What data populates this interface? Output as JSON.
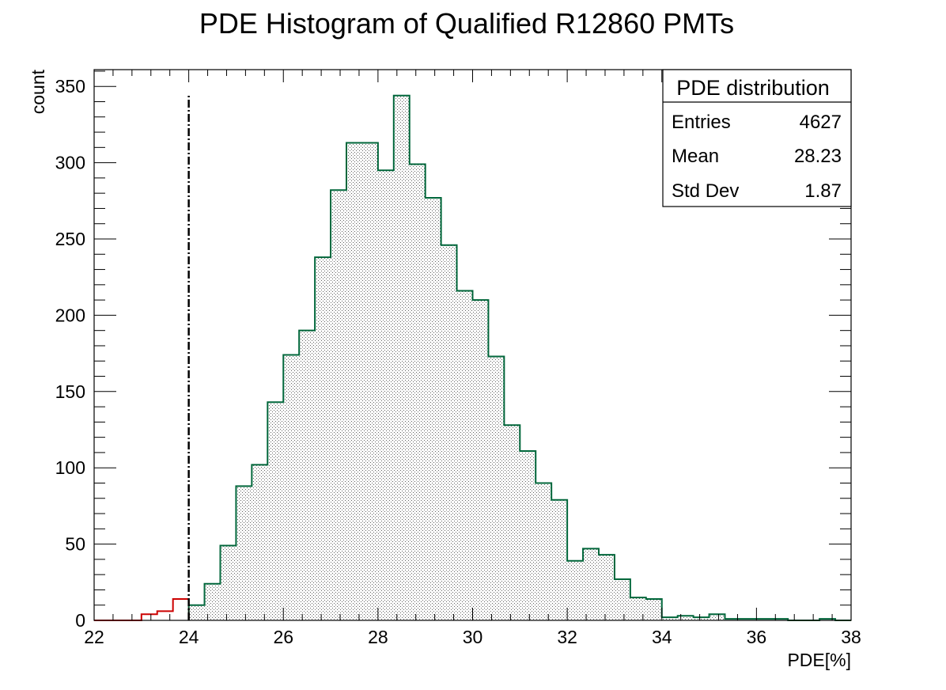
{
  "chart_data": {
    "type": "bar",
    "title": "PDE Histogram of Qualified R12860 PMTs",
    "xlabel": "PDE[%]",
    "ylabel": "count",
    "xlim": [
      22,
      38
    ],
    "ylim": [
      0,
      361
    ],
    "x_ticks": [
      "22",
      "24",
      "26",
      "28",
      "30",
      "32",
      "34",
      "36",
      "38"
    ],
    "y_ticks": [
      "0",
      "50",
      "100",
      "150",
      "200",
      "250",
      "300",
      "350"
    ],
    "bin_width": 0.333,
    "grid": false,
    "threshold_line": {
      "x": 24,
      "style": "dash-dot"
    },
    "series": [
      {
        "color": "#cc0000",
        "bin_lefts": [
          22.333,
          22.667,
          23.0,
          23.333,
          23.667
        ],
        "values": [
          0,
          0,
          4,
          6,
          14
        ]
      },
      {
        "color": "#00663a",
        "bin_lefts": [
          24.0,
          24.333,
          24.667,
          25.0,
          25.333,
          25.667,
          26.0,
          26.333,
          26.667,
          27.0,
          27.333,
          27.667,
          28.0,
          28.333,
          28.667,
          29.0,
          29.333,
          29.667,
          30.0,
          30.333,
          30.667,
          31.0,
          31.333,
          31.667,
          32.0,
          32.333,
          32.667,
          33.0,
          33.333,
          33.667,
          34.0,
          34.333,
          34.667,
          35.0,
          35.333,
          35.667,
          36.0,
          36.333,
          36.667,
          37.0,
          37.333,
          37.667
        ],
        "values": [
          10,
          24,
          49,
          88,
          102,
          143,
          174,
          190,
          238,
          282,
          313,
          313,
          295,
          344,
          299,
          277,
          246,
          216,
          210,
          173,
          128,
          111,
          90,
          79,
          39,
          47,
          43,
          27,
          15,
          14,
          2,
          3,
          2,
          4,
          1,
          1,
          1,
          1,
          0,
          0,
          1,
          0
        ]
      }
    ],
    "stats_box": {
      "title": "PDE distribution",
      "rows": [
        {
          "label": "Entries",
          "value": "4627"
        },
        {
          "label": "Mean",
          "value": "28.23"
        },
        {
          "label": "Std Dev",
          "value": "1.87"
        }
      ]
    }
  }
}
